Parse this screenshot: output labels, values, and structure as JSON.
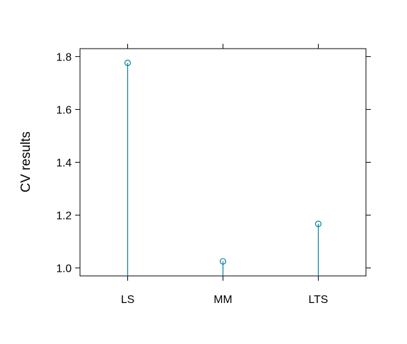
{
  "chart_data": {
    "type": "scatter",
    "style": "lollipop",
    "title": "",
    "xlabel": "",
    "ylabel": "CV results",
    "categories": [
      "LS",
      "MM",
      "LTS"
    ],
    "values": [
      1.776,
      1.025,
      1.167
    ],
    "ylim": [
      0.97,
      1.83
    ],
    "yticks": [
      "1.0",
      "1.2",
      "1.4",
      "1.6",
      "1.8"
    ],
    "grid": false,
    "legend": "none",
    "colors": {
      "mark": "#0080a0",
      "axis": "#000000",
      "background": "#ffffff"
    }
  }
}
